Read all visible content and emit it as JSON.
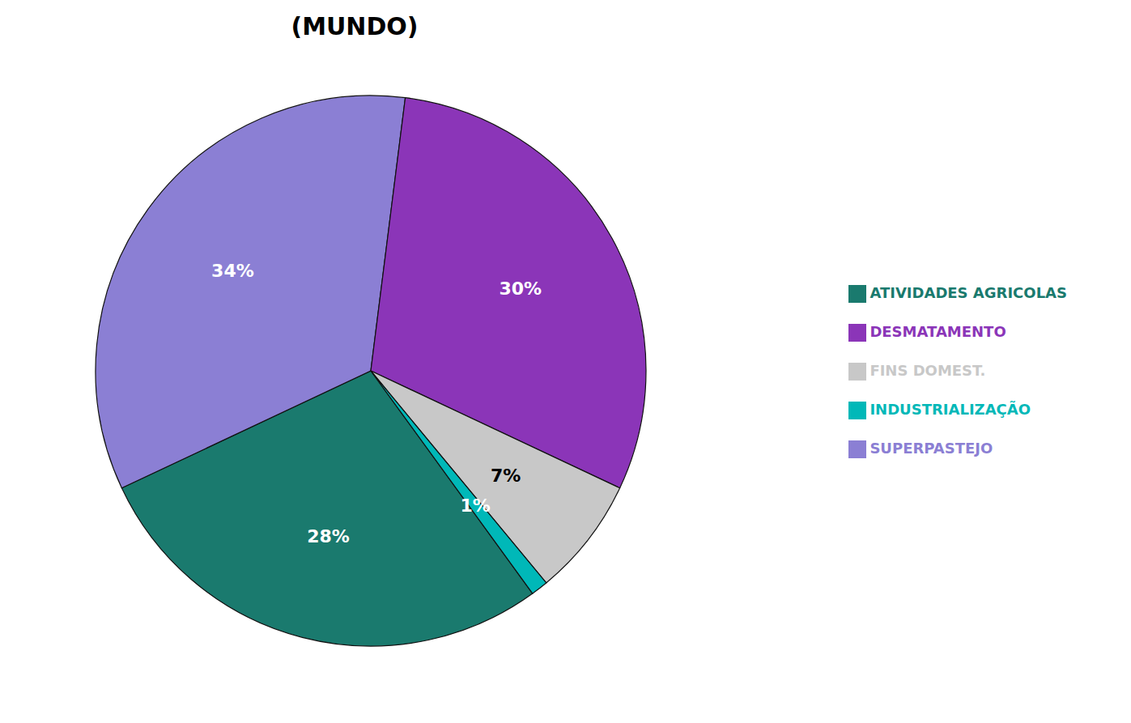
{
  "chart_data": {
    "type": "pie",
    "title": "(MUNDO)",
    "categories": [
      "ATIVIDADES AGRICOLAS",
      "SUPERPASTEJO",
      "DESMATAMENTO",
      "FINS DOMEST.",
      "INDUSTRIALIZAÇÃO"
    ],
    "values": [
      28,
      34,
      30,
      7,
      1
    ],
    "value_labels": [
      "28%",
      "34%",
      "30%",
      "7%",
      "1%"
    ],
    "colors": [
      "#1a7a6e",
      "#8b7fd4",
      "#8b35b8",
      "#c8c8c8",
      "#00b8b8"
    ],
    "data_labels": true,
    "legend": "right"
  }
}
